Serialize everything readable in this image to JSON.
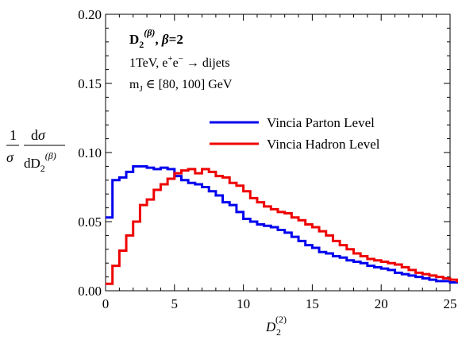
{
  "chart_data": {
    "type": "line",
    "step": true,
    "xlim": [
      0,
      25
    ],
    "ylim": [
      0,
      0.2
    ],
    "xticks": [
      0,
      5,
      10,
      15,
      20,
      25
    ],
    "yticks": [
      0.0,
      0.05,
      0.1,
      0.15,
      0.2
    ],
    "xtick_labels": [
      "0",
      "5",
      "10",
      "15",
      "20",
      "25"
    ],
    "ytick_labels": [
      "0.00",
      "0.05",
      "0.10",
      "0.15",
      "0.20"
    ],
    "xlabel": "D2(2)",
    "ylabel": "1/σ dσ/dD2(β)",
    "legend_position": "upper-right",
    "annotations": {
      "title": "D2(β), β=2",
      "line1": "1TeV, e⁺e⁻ → dijets",
      "line2": "mJ ∈ [80, 100] GeV"
    },
    "bin_width": 0.5,
    "bin_start": 0,
    "series": [
      {
        "name": "Vincia Parton Level",
        "color": "#0000ee",
        "values": [
          0.053,
          0.08,
          0.082,
          0.086,
          0.09,
          0.09,
          0.089,
          0.088,
          0.089,
          0.088,
          0.083,
          0.08,
          0.078,
          0.077,
          0.075,
          0.072,
          0.069,
          0.064,
          0.062,
          0.057,
          0.052,
          0.05,
          0.048,
          0.047,
          0.046,
          0.044,
          0.042,
          0.039,
          0.036,
          0.033,
          0.031,
          0.028,
          0.027,
          0.025,
          0.024,
          0.022,
          0.021,
          0.02,
          0.018,
          0.017,
          0.016,
          0.015,
          0.013,
          0.012,
          0.011,
          0.01,
          0.009,
          0.008,
          0.007,
          0.007,
          0.006,
          0.006,
          0.005,
          0.005,
          0.004,
          0.004,
          0.004,
          0.003,
          0.003,
          0.003,
          0.003,
          0.002,
          0.002,
          0.002,
          0.002,
          0.002,
          0.002,
          0.001,
          0.001,
          0.001
        ]
      },
      {
        "name": "Vincia Hadron Level",
        "color": "#ee0000",
        "values": [
          0.005,
          0.018,
          0.029,
          0.04,
          0.05,
          0.062,
          0.066,
          0.073,
          0.077,
          0.081,
          0.085,
          0.087,
          0.088,
          0.085,
          0.088,
          0.086,
          0.083,
          0.082,
          0.078,
          0.076,
          0.072,
          0.067,
          0.064,
          0.061,
          0.059,
          0.057,
          0.056,
          0.053,
          0.051,
          0.048,
          0.046,
          0.043,
          0.04,
          0.036,
          0.033,
          0.03,
          0.027,
          0.025,
          0.023,
          0.022,
          0.021,
          0.02,
          0.019,
          0.017,
          0.015,
          0.013,
          0.012,
          0.011,
          0.01,
          0.009,
          0.008,
          0.007,
          0.007,
          0.006,
          0.006,
          0.005,
          0.005,
          0.005,
          0.004,
          0.004,
          0.004,
          0.003,
          0.003,
          0.003,
          0.003,
          0.002,
          0.002,
          0.002,
          0.002,
          0.002
        ]
      }
    ]
  }
}
